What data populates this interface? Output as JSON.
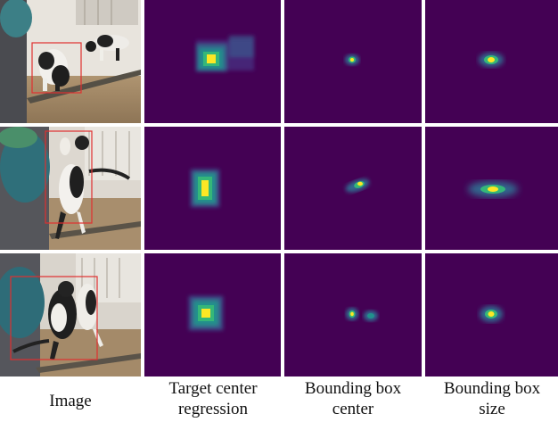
{
  "figure": {
    "column_captions": [
      "Image",
      "Target center\nregression",
      "Bounding box\ncenter",
      "Bounding box\nsize"
    ],
    "rows": [
      {
        "image_panel": "cat-in-front-of-mirror-1",
        "target_center_regression": "gaussian-blob-with-trailing-blocks",
        "bounding_box_center": "small-yellow-peak",
        "bounding_box_size": "small-ellipse"
      },
      {
        "image_panel": "cat-jumping-at-mirror",
        "target_center_regression": "pixelated-gaussian-blob",
        "bounding_box_center": "diagonal-elongated-peak",
        "bounding_box_size": "wide-ellipse"
      },
      {
        "image_panel": "cat-in-front-of-mirror-2",
        "target_center_regression": "pixelated-gaussian-blob",
        "bounding_box_center": "two-peaks",
        "bounding_box_size": "small-ellipse"
      }
    ],
    "colors": {
      "heatmap_background": "#440154",
      "heatmap_low": "#31688e",
      "heatmap_mid": "#35b779",
      "heatmap_peak": "#fde725",
      "bounding_box": "#e03030"
    }
  }
}
